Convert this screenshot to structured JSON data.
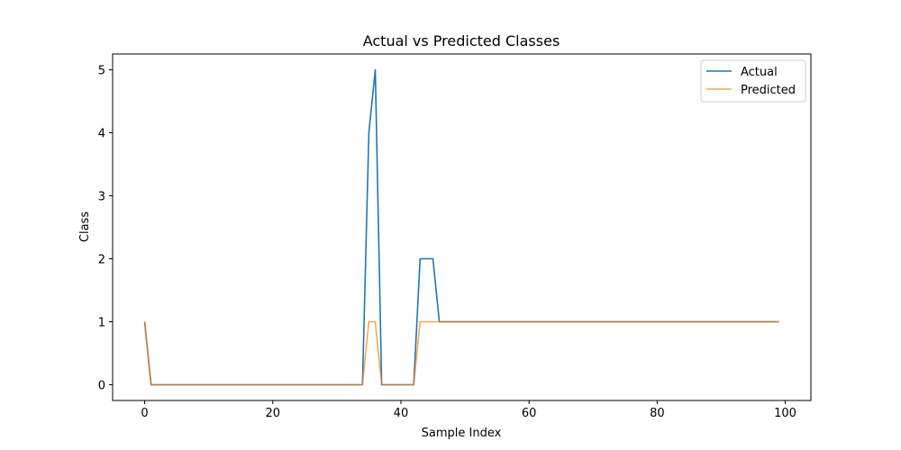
{
  "chart_data": {
    "type": "line",
    "title": "Actual vs Predicted Classes",
    "xlabel": "Sample Index",
    "ylabel": "Class",
    "xlim": [
      -5,
      104
    ],
    "ylim": [
      -0.25,
      5.25
    ],
    "xticks": [
      0,
      20,
      40,
      60,
      80,
      100
    ],
    "yticks": [
      0,
      1,
      2,
      3,
      4,
      5
    ],
    "grid": false,
    "legend_position": "top-right",
    "series": [
      {
        "name": "Actual",
        "color": "#1f77b4",
        "points": [
          [
            0,
            1
          ],
          [
            1,
            0
          ],
          [
            34,
            0
          ],
          [
            35,
            4
          ],
          [
            36,
            5
          ],
          [
            37,
            0
          ],
          [
            42,
            0
          ],
          [
            43,
            2
          ],
          [
            45,
            2
          ],
          [
            46,
            1
          ],
          [
            99,
            1
          ]
        ]
      },
      {
        "name": "Predicted",
        "color": "#ff7f0e",
        "opacity": 0.7,
        "points": [
          [
            0,
            1
          ],
          [
            1,
            0
          ],
          [
            34,
            0
          ],
          [
            35,
            1
          ],
          [
            36,
            1
          ],
          [
            37,
            0
          ],
          [
            42,
            0
          ],
          [
            43,
            1
          ],
          [
            99,
            1
          ]
        ]
      }
    ]
  }
}
